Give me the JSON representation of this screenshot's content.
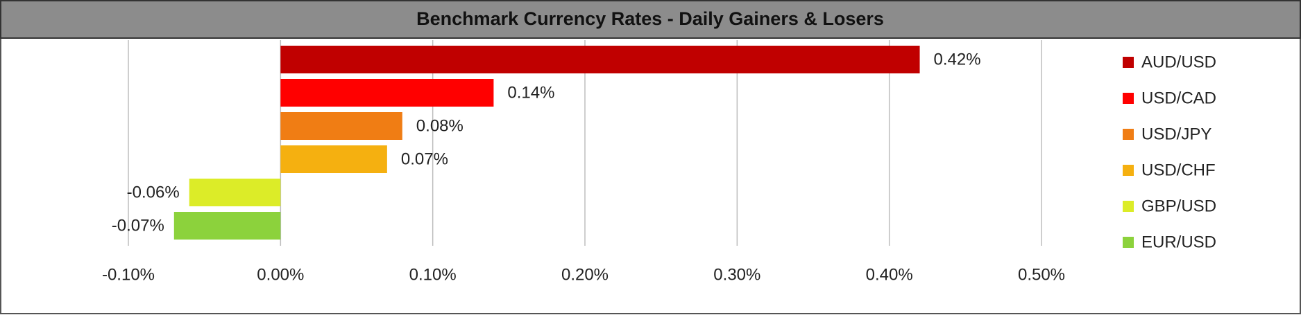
{
  "chart_data": {
    "type": "barh",
    "title": "Benchmark Currency Rates - Daily Gainers & Losers",
    "categories": [
      "AUD/USD",
      "USD/CAD",
      "USD/JPY",
      "USD/CHF",
      "GBP/USD",
      "EUR/USD"
    ],
    "values": [
      0.42,
      0.14,
      0.08,
      0.07,
      -0.06,
      -0.07
    ],
    "value_labels": [
      "0.42%",
      "0.14%",
      "0.08%",
      "0.07%",
      "-0.06%",
      "-0.07%"
    ],
    "colors": [
      "#c00000",
      "#ff0000",
      "#f07d14",
      "#f5b010",
      "#dcec28",
      "#8cd23c"
    ],
    "xlim": [
      -0.1,
      0.5
    ],
    "xticks": [
      {
        "value": -0.1,
        "label": "-0.10%"
      },
      {
        "value": 0,
        "label": "0.00%"
      },
      {
        "value": 0.1,
        "label": "0.10%"
      },
      {
        "value": 0.2,
        "label": "0.20%"
      },
      {
        "value": 0.3,
        "label": "0.30%"
      },
      {
        "value": 0.4,
        "label": "0.40%"
      },
      {
        "value": 0.5,
        "label": "0.50%"
      }
    ],
    "grid": true,
    "legend": "right"
  }
}
